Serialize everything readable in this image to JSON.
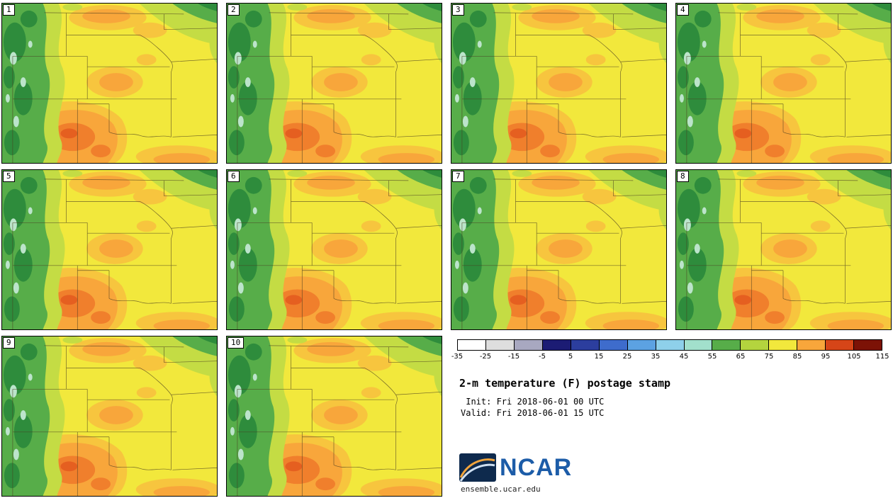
{
  "title_block": {
    "title": "2-m temperature (F) postage stamp",
    "init_line": " Init: Fri 2018-06-01 00 UTC",
    "valid_line": "Valid: Fri 2018-06-01 15 UTC",
    "logo_text": "NCAR",
    "site": "ensemble.ucar.edu"
  },
  "panels": [
    {
      "label": "1"
    },
    {
      "label": "2"
    },
    {
      "label": "3"
    },
    {
      "label": "4"
    },
    {
      "label": "5"
    },
    {
      "label": "6"
    },
    {
      "label": "7"
    },
    {
      "label": "8"
    },
    {
      "label": "9"
    },
    {
      "label": "10"
    }
  ],
  "colorbar": {
    "ticks": [
      "-35",
      "-25",
      "-15",
      "-5",
      "5",
      "15",
      "25",
      "35",
      "45",
      "55",
      "65",
      "75",
      "85",
      "95",
      "105",
      "115"
    ],
    "colors": [
      "#ffffff",
      "#dedede",
      "#a8a8c0",
      "#1c1c74",
      "#2c3e9e",
      "#3e6ccc",
      "#5ca2e2",
      "#8ed0ea",
      "#a2e0cc",
      "#57ad49",
      "#b4d43e",
      "#f2e83c",
      "#f8a63b",
      "#d64518",
      "#7c1206"
    ]
  },
  "map_palette": {
    "base_yellow": "#f2e83c",
    "amber": "#f7c53e",
    "orange": "#f8a63b",
    "deep_orange": "#f07f2c",
    "red_orange": "#e55f20",
    "yellow_green": "#c4dc44",
    "green_mid": "#57ad49",
    "green_dark": "#2e8c3c",
    "mint": "#bce4cb",
    "border_line": "#4a3d20"
  },
  "chart_data": {
    "type": "heatmap",
    "title": "2-m temperature (F) postage stamp",
    "init": "Fri 2018-06-01 00 UTC",
    "valid": "Fri 2018-06-01 15 UTC",
    "ensemble_members": [
      1,
      2,
      3,
      4,
      5,
      6,
      7,
      8,
      9,
      10
    ],
    "panel_grid": {
      "rows": 3,
      "cols": 4,
      "panel_count": 10
    },
    "colorbar": {
      "units": "F",
      "ticks": [
        -35,
        -25,
        -15,
        -5,
        5,
        15,
        25,
        35,
        45,
        55,
        65,
        75,
        85,
        95,
        105,
        115
      ],
      "colors": [
        "#ffffff",
        "#dedede",
        "#a8a8c0",
        "#1c1c74",
        "#2c3e9e",
        "#3e6ccc",
        "#5ca2e2",
        "#8ed0ea",
        "#a2e0cc",
        "#57ad49",
        "#b4d43e",
        "#f2e83c",
        "#f8a63b",
        "#d64518",
        "#7c1206"
      ]
    },
    "legend_position": "bottom-right",
    "field_summary": "Temperatures mostly 55-85 F: greens (cooler) over western mountains and northeast corner, yellow over central plains, orange (warmer) over south-central region in all 10 members"
  }
}
